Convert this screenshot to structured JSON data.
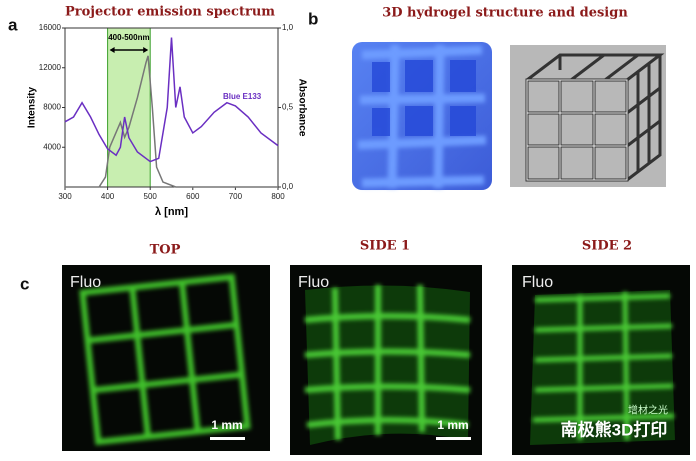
{
  "chart_data": {
    "type": "line",
    "title": "Projector emission spectrum",
    "xlabel": "λ [nm]",
    "ylabel": "Intensity",
    "y2label": "Absorbance",
    "band_label": "400-500nm",
    "highlight": [
      400,
      500
    ],
    "xlim": [
      300,
      800
    ],
    "xticks": [
      300,
      400,
      500,
      600,
      700,
      800
    ],
    "ylim": [
      0,
      16000
    ],
    "yticks": [
      4000,
      8000,
      12000,
      16000
    ],
    "y2lim": [
      0,
      1
    ],
    "y2ticks": [
      {
        "value": 0,
        "label": "0,0"
      },
      {
        "value": 0.5,
        "label": "0,5"
      },
      {
        "value": 1,
        "label": "1,0"
      }
    ],
    "series": [
      {
        "color": "#777777",
        "x": [
          300,
          380,
          395,
          405,
          420,
          430,
          440,
          450,
          470,
          490,
          495,
          505,
          515,
          530,
          560,
          800
        ],
        "values": [
          0,
          0,
          1000,
          4000,
          5500,
          6500,
          5000,
          6000,
          9000,
          12500,
          13200,
          8000,
          2000,
          500,
          0,
          0
        ]
      },
      {
        "name": "Blue E133",
        "color": "#6a2fc2",
        "axis": "y2",
        "x": [
          300,
          320,
          340,
          360,
          380,
          400,
          420,
          430,
          440,
          450,
          470,
          500,
          520,
          540,
          550,
          560,
          570,
          580,
          600,
          620,
          650,
          680,
          700,
          730,
          760,
          800
        ],
        "values": [
          0.41,
          0.44,
          0.53,
          0.44,
          0.33,
          0.24,
          0.2,
          0.25,
          0.44,
          0.31,
          0.22,
          0.16,
          0.18,
          0.5,
          0.94,
          0.5,
          0.63,
          0.44,
          0.34,
          0.38,
          0.47,
          0.53,
          0.51,
          0.44,
          0.34,
          0.26
        ]
      }
    ]
  },
  "panels": {
    "a": "a",
    "b": "b",
    "c": "c",
    "b_title": "3D hydrogel structure and design",
    "views": [
      "TOP",
      "SIDE 1",
      "SIDE 2"
    ],
    "fluo": [
      "Fluo",
      "Fluo",
      "Fluo"
    ],
    "scale": [
      "1 mm",
      "1 mm"
    ],
    "watermark": "南极熊3D打印",
    "watermark_small": "增材之光"
  }
}
